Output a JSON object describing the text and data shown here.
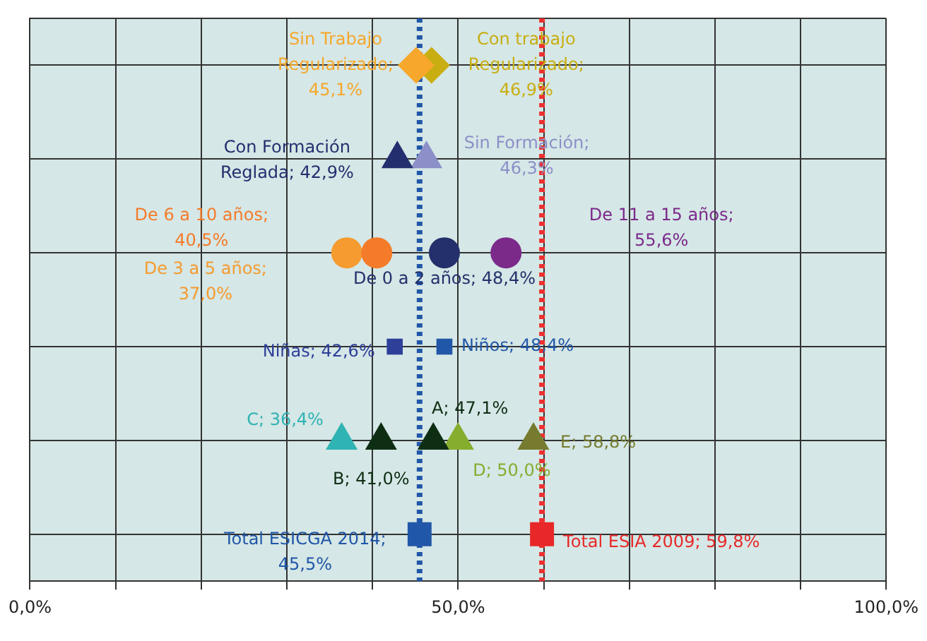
{
  "chart_data": {
    "type": "scatter",
    "orientation": "horizontal",
    "categories": [
      null,
      null,
      null,
      null,
      null,
      null
    ],
    "xlim": [
      0,
      100
    ],
    "xticks": [
      {
        "value": 0,
        "label": "0,0%"
      },
      {
        "value": 10,
        "label": null
      },
      {
        "value": 20,
        "label": null
      },
      {
        "value": 30,
        "label": null
      },
      {
        "value": 40,
        "label": null
      },
      {
        "value": 50,
        "label": "50,0%"
      },
      {
        "value": 60,
        "label": null
      },
      {
        "value": 70,
        "label": null
      },
      {
        "value": 80,
        "label": null
      },
      {
        "value": 90,
        "label": null
      },
      {
        "value": 100,
        "label": "100,0%"
      }
    ],
    "tick_labels": "x",
    "grid": true,
    "legend": false,
    "series": [
      {
        "name": "Sin Trabajo Regularizado; 45,1%",
        "color": "#f6a72c",
        "marker": "diamond",
        "values": [
          45.1,
          null,
          null,
          null,
          null,
          null
        ]
      },
      {
        "name": "Con trabajo Regularizado; 46,9%",
        "color": "#c9ae12",
        "marker": "diamond",
        "values": [
          46.9,
          null,
          null,
          null,
          null,
          null
        ]
      },
      {
        "name": "Con Formación Reglada; 42,9%",
        "color": "#232e6e",
        "marker": "triangle",
        "values": [
          null,
          42.9,
          null,
          null,
          null,
          null
        ]
      },
      {
        "name": "Sin Formación; 46,3%",
        "color": "#8c8fc8",
        "marker": "triangle",
        "values": [
          null,
          46.3,
          null,
          null,
          null,
          null
        ]
      },
      {
        "name": "De 6 a 10 años; 40,5%",
        "color": "#f47b2a",
        "marker": "circle",
        "values": [
          null,
          null,
          40.5,
          null,
          null,
          null
        ]
      },
      {
        "name": "De 3 a 5 años; 37,0%",
        "color": "#f59b2f",
        "marker": "circle",
        "values": [
          null,
          null,
          37.0,
          null,
          null,
          null
        ]
      },
      {
        "name": "De 0 a 2 años; 48,4%",
        "color": "#23306b",
        "marker": "circle",
        "values": [
          null,
          null,
          48.4,
          null,
          null,
          null
        ]
      },
      {
        "name": "De 11 a 15 años; 55,6%",
        "color": "#7b2a8a",
        "marker": "circle",
        "values": [
          null,
          null,
          55.6,
          null,
          null,
          null
        ]
      },
      {
        "name": "Niñas; 42,6%",
        "color": "#2e3f9a",
        "marker": "square",
        "values": [
          null,
          null,
          null,
          42.6,
          null,
          null
        ]
      },
      {
        "name": "Niños; 48,4%",
        "color": "#2157a8",
        "marker": "square",
        "values": [
          null,
          null,
          null,
          48.4,
          null,
          null
        ]
      },
      {
        "name": "C; 36,4%",
        "color": "#2fb3b3",
        "marker": "triangle",
        "values": [
          null,
          null,
          null,
          null,
          36.4,
          null
        ]
      },
      {
        "name": "B; 41,0%",
        "color": "#0e2e14",
        "marker": "triangle",
        "values": [
          null,
          null,
          null,
          null,
          41.0,
          null
        ]
      },
      {
        "name": "A; 47,1%",
        "color": "#0e2e14",
        "marker": "triangle",
        "values": [
          null,
          null,
          null,
          null,
          47.1,
          null
        ]
      },
      {
        "name": "D; 50,0%",
        "color": "#86ad2e",
        "marker": "triangle",
        "values": [
          null,
          null,
          null,
          null,
          50.0,
          null
        ]
      },
      {
        "name": "E; 58,8%",
        "color": "#767b2f",
        "marker": "triangle",
        "values": [
          null,
          null,
          null,
          null,
          58.8,
          null
        ]
      },
      {
        "name": "Total ESICGA 2014; 45,5%",
        "color": "#2157a8",
        "marker": "square",
        "values": [
          null,
          null,
          null,
          null,
          null,
          45.5
        ]
      },
      {
        "name": "Total ESIA 2009; 59,8%",
        "color": "#e82828",
        "marker": "square",
        "values": [
          null,
          null,
          null,
          null,
          null,
          59.8
        ]
      }
    ],
    "ref_lines": [
      {
        "axis": "x",
        "value": 45.5,
        "color": "#2157a8",
        "line_style": "dotted"
      },
      {
        "axis": "x",
        "value": 59.8,
        "color": "#ee3030",
        "line_style": "dotted"
      }
    ]
  }
}
